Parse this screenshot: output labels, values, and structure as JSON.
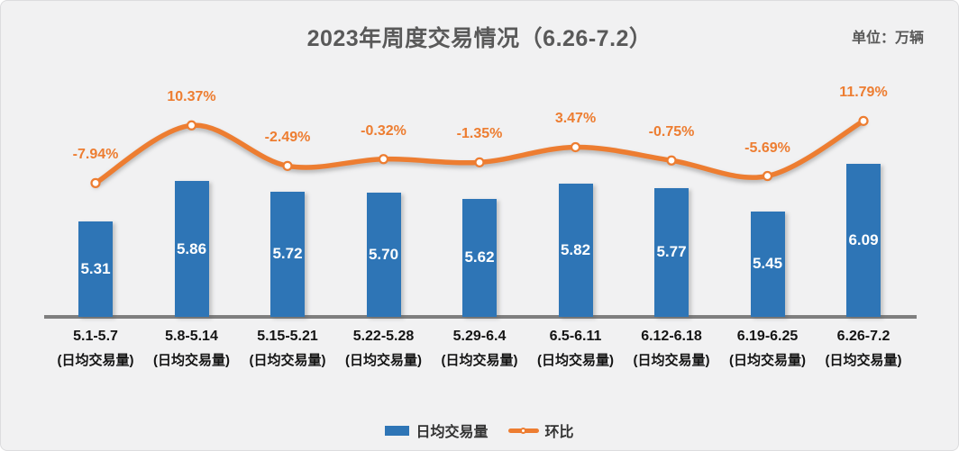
{
  "header": {
    "title": "2023年周度交易情况（6.26-7.2）",
    "unit_label": "单位：万辆"
  },
  "chart_data": {
    "type": "bar+line",
    "title": "2023年周度交易情况（6.26-7.2）",
    "unit": "万辆",
    "categories": [
      "5.1-5.7",
      "5.8-5.14",
      "5.15-5.21",
      "5.22-5.28",
      "5.29-6.4",
      "6.5-6.11",
      "6.12-6.18",
      "6.19-6.25",
      "6.26-7.2"
    ],
    "category_sublabel": "(日均交易量)",
    "series": [
      {
        "name": "日均交易量",
        "type": "bar",
        "color": "#2E75B6",
        "label_color": "#FFFFFF",
        "values": [
          5.31,
          5.86,
          5.72,
          5.7,
          5.62,
          5.82,
          5.77,
          5.45,
          6.09
        ],
        "value_labels": [
          "5.31",
          "5.86",
          "5.72",
          "5.70",
          "5.62",
          "5.82",
          "5.77",
          "5.45",
          "6.09"
        ]
      },
      {
        "name": "环比",
        "type": "line",
        "color": "#ED7D31",
        "marker": "circle-white-fill",
        "values": [
          -7.94,
          10.37,
          -2.49,
          -0.32,
          -1.35,
          3.47,
          -0.75,
          -5.69,
          11.79
        ],
        "value_labels": [
          "-7.94%",
          "10.37%",
          "-2.49%",
          "-0.32%",
          "-1.35%",
          "3.47%",
          "-0.75%",
          "-5.69%",
          "11.79%"
        ]
      }
    ],
    "bar_axis": {
      "min": 4.0,
      "max": 6.6,
      "visible": false
    },
    "line_axis": {
      "unit": "%",
      "visible": false
    },
    "legend_position": "bottom",
    "grid": false,
    "background": "#F1F1F2",
    "axis_line_color": "#7F7F7F"
  }
}
